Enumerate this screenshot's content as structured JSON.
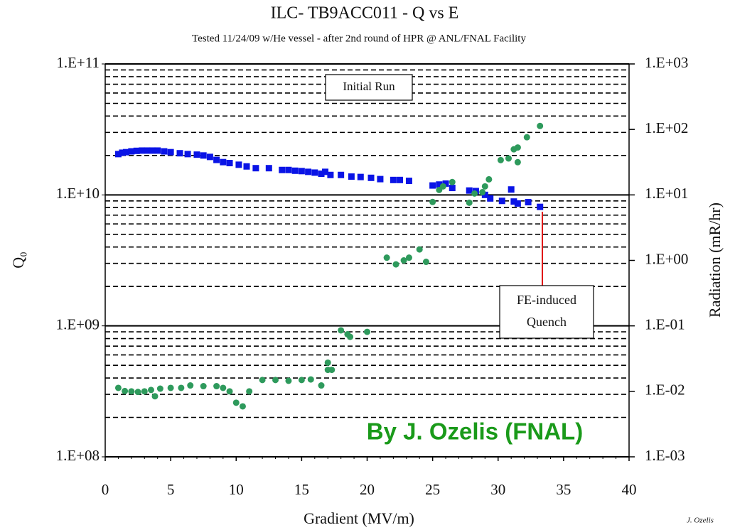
{
  "chart_data": {
    "type": "scatter",
    "title": "ILC- TB9ACC011 - Q vs E",
    "subtitle": "Tested 11/24/09  w/He vessel - after 2nd round of HPR @ ANL/FNAL Facility",
    "x_label": "Gradient (MV/m)",
    "y_label": "Q₀",
    "y2_label": "Radiation (mR/hr)",
    "xlim": [
      0,
      40
    ],
    "xticks": [
      0,
      5,
      10,
      15,
      20,
      25,
      30,
      35,
      40
    ],
    "ylim": [
      100000000.0,
      100000000000.0
    ],
    "yticks": [
      {
        "value": 100000000.0,
        "label": "1.E+08"
      },
      {
        "value": 1000000000.0,
        "label": "1.E+09"
      },
      {
        "value": 10000000000.0,
        "label": "1.E+10"
      },
      {
        "value": 100000000000.0,
        "label": "1.E+11"
      }
    ],
    "y2lim": [
      0.001,
      1000
    ],
    "y2ticks": [
      {
        "value": 0.001,
        "label": "1.E-03"
      },
      {
        "value": 0.01,
        "label": "1.E-02"
      },
      {
        "value": 0.1,
        "label": "1.E-01"
      },
      {
        "value": 1,
        "label": "1.E+00"
      },
      {
        "value": 10,
        "label": "1.E+01"
      },
      {
        "value": 100,
        "label": "1.E+02"
      },
      {
        "value": 1000,
        "label": "1.E+03"
      }
    ],
    "log_y": true,
    "log_y2": true,
    "grid": true,
    "series": [
      {
        "name": "Q0",
        "color": "#0a14e6",
        "marker": "square",
        "x": [
          1.0,
          1.3,
          1.6,
          2.0,
          2.4,
          2.8,
          3.2,
          3.6,
          4.0,
          4.5,
          5.0,
          5.7,
          6.3,
          7.0,
          7.5,
          8.0,
          8.5,
          9.0,
          9.5,
          10.2,
          10.8,
          11.5,
          12.5,
          13.5,
          14.0,
          14.5,
          15.0,
          15.5,
          16.0,
          16.5,
          16.8,
          17.2,
          18.0,
          18.8,
          19.5,
          20.3,
          21.0,
          22.0,
          22.5,
          23.2,
          25.0,
          25.5,
          26.0,
          26.5,
          27.8,
          28.3,
          29.0,
          29.4,
          30.3,
          31.0,
          31.2,
          31.5,
          32.3,
          33.2
        ],
        "values": [
          20500000000.0,
          21000000000.0,
          21200000000.0,
          21500000000.0,
          21700000000.0,
          21800000000.0,
          21800000000.0,
          21800000000.0,
          21800000000.0,
          21500000000.0,
          21200000000.0,
          20800000000.0,
          20500000000.0,
          20300000000.0,
          20000000000.0,
          19500000000.0,
          18500000000.0,
          17800000000.0,
          17500000000.0,
          17000000000.0,
          16500000000.0,
          16000000000.0,
          16000000000.0,
          15500000000.0,
          15500000000.0,
          15300000000.0,
          15200000000.0,
          15000000000.0,
          14800000000.0,
          14500000000.0,
          15000000000.0,
          14200000000.0,
          14200000000.0,
          13800000000.0,
          13700000000.0,
          13500000000.0,
          13200000000.0,
          13000000000.0,
          13000000000.0,
          12800000000.0,
          11800000000.0,
          12000000000.0,
          12200000000.0,
          11300000000.0,
          10800000000.0,
          10700000000.0,
          10000000000.0,
          9400000000.0,
          9000000000.0,
          11000000000.0,
          8900000000.0,
          8600000000.0,
          8800000000.0,
          8100000000.0
        ]
      },
      {
        "name": "Radiation",
        "color": "#2e9a5c",
        "marker": "circle",
        "axis": "y2",
        "x": [
          1.0,
          1.5,
          2.0,
          2.5,
          3.0,
          3.5,
          3.8,
          4.2,
          5.0,
          5.8,
          6.5,
          7.5,
          8.5,
          9.0,
          9.5,
          10.0,
          10.5,
          11.0,
          12.0,
          13.0,
          14.0,
          15.0,
          15.7,
          16.5,
          17.0,
          17.0,
          17.3,
          18.0,
          18.5,
          18.7,
          20.0,
          21.5,
          22.2,
          22.8,
          23.2,
          24.0,
          24.5,
          25.0,
          25.5,
          25.8,
          26.5,
          27.8,
          28.2,
          28.8,
          29.0,
          29.3,
          30.2,
          30.8,
          31.2,
          31.5,
          31.5,
          32.2,
          33.2
        ],
        "values": [
          0.0113,
          0.0101,
          0.01,
          0.0098,
          0.01,
          0.0105,
          0.0084,
          0.011,
          0.0113,
          0.0113,
          0.0123,
          0.012,
          0.012,
          0.0113,
          0.01,
          0.0067,
          0.0059,
          0.01,
          0.0149,
          0.0149,
          0.0145,
          0.0149,
          0.0152,
          0.0123,
          0.0274,
          0.0213,
          0.0213,
          0.0854,
          0.0745,
          0.068,
          0.081,
          1.1,
          0.87,
          1.0,
          1.1,
          1.47,
          0.95,
          7.8,
          11.9,
          13.5,
          15.7,
          7.6,
          10.5,
          11.0,
          13.5,
          17.3,
          34,
          36,
          49.7,
          53,
          31.6,
          76,
          113
        ]
      }
    ],
    "annotations": [
      {
        "lines": [
          "Initial Run"
        ]
      },
      {
        "lines": [
          "FE-induced",
          "Quench"
        ]
      },
      {
        "lines": [
          "By J. Ozelis (FNAL)"
        ]
      },
      {
        "lines": [
          "J. Ozelis"
        ]
      }
    ]
  }
}
